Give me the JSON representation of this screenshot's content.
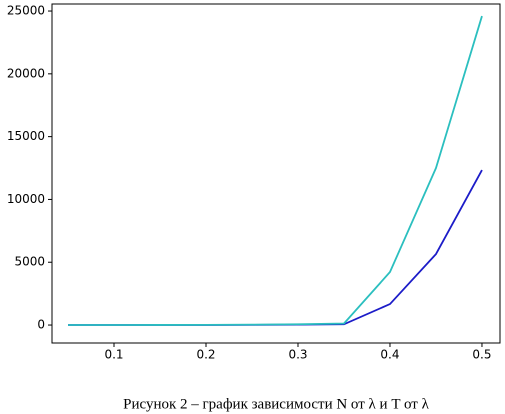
{
  "chart_data": {
    "type": "line",
    "x": [
      0.05,
      0.1,
      0.15,
      0.2,
      0.25,
      0.3,
      0.35,
      0.4,
      0.45,
      0.5
    ],
    "series": [
      {
        "color": "#1c1cc8",
        "values": [
          1,
          2,
          4,
          8,
          15,
          30,
          60,
          1670,
          5650,
          12340
        ]
      },
      {
        "color": "#2bbfbf",
        "values": [
          2,
          4,
          8,
          15,
          30,
          60,
          120,
          4220,
          12500,
          24600
        ]
      }
    ],
    "xlim": [
      0.0326,
      0.5196
    ],
    "xticks": [
      0.1,
      0.2,
      0.3,
      0.4,
      0.5
    ],
    "ylim": [
      -1430,
      25560
    ],
    "yticks": [
      0,
      5000,
      10000,
      15000,
      20000,
      25000
    ],
    "grid": false,
    "caption": "Рисунок 2 – график зависимости N от λ и T от λ"
  }
}
